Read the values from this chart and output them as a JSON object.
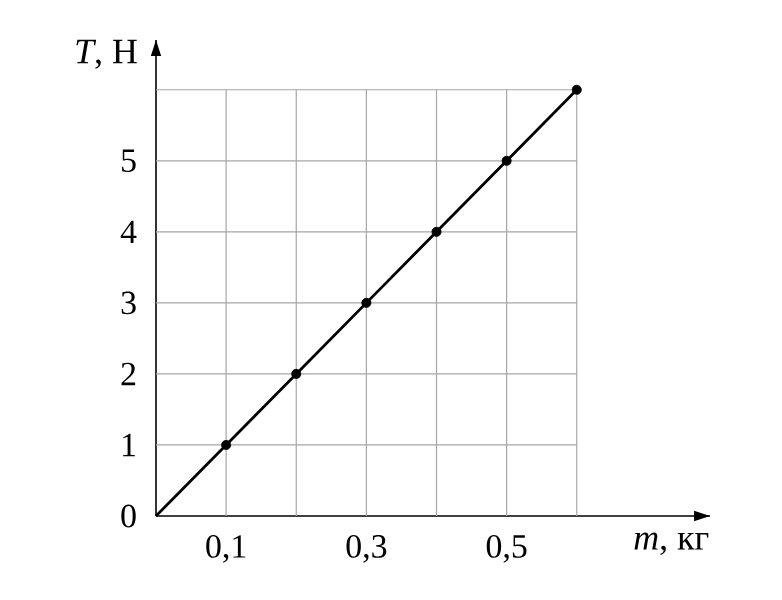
{
  "chart_data": {
    "type": "line",
    "xlabel": "*m*, кг",
    "ylabel": "*T*, Н",
    "xlim": [
      0,
      0.79
    ],
    "ylim": [
      0,
      6.7
    ],
    "xticks": [
      {
        "value": 0.1,
        "label": "0,1"
      },
      {
        "value": 0.2,
        "label": null
      },
      {
        "value": 0.3,
        "label": "0,3"
      },
      {
        "value": 0.4,
        "label": null
      },
      {
        "value": 0.5,
        "label": "0,5"
      },
      {
        "value": 0.6,
        "label": null
      }
    ],
    "yticks": [
      0,
      1,
      2,
      3,
      4,
      5,
      {
        "value": 6,
        "label": null
      }
    ],
    "grid": true,
    "series": [
      {
        "color": "#000000",
        "marker": "none",
        "x": [
          0,
          0.1,
          0.2,
          0.3,
          0.4,
          0.5,
          0.6
        ],
        "values": [
          0,
          1,
          2,
          3,
          4,
          5,
          6
        ]
      },
      {
        "type": "scatter",
        "color": "#000000",
        "marker": "circle",
        "x": [
          0.1,
          0.2,
          0.3,
          0.4,
          0.5,
          0.6
        ],
        "values": [
          1,
          2,
          3,
          4,
          5,
          6
        ]
      }
    ]
  }
}
